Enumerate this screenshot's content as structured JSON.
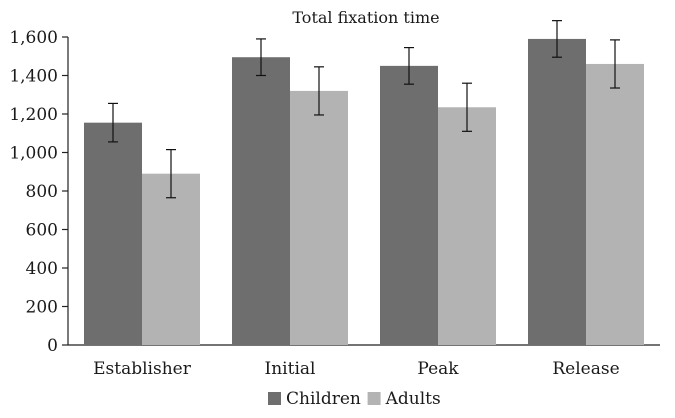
{
  "chart_data": {
    "type": "bar",
    "title": "Total fixation time",
    "xlabel": "",
    "ylabel": "",
    "categories": [
      "Establisher",
      "Initial",
      "Peak",
      "Release"
    ],
    "series": [
      {
        "name": "Children",
        "color": "#6e6e6e",
        "values": [
          1155,
          1495,
          1450,
          1590
        ],
        "error": [
          100,
          95,
          95,
          95
        ]
      },
      {
        "name": "Adults",
        "color": "#b3b3b3",
        "values": [
          890,
          1320,
          1235,
          1460
        ],
        "error": [
          125,
          125,
          125,
          125
        ]
      }
    ],
    "ylim": [
      0,
      1600
    ],
    "yticks": [
      0,
      200,
      400,
      600,
      800,
      1000,
      1200,
      1400,
      1600
    ],
    "ytick_labels": [
      "0",
      "200",
      "400",
      "600",
      "800",
      "1,000",
      "1,200",
      "1,400",
      "1,600"
    ],
    "grid": false,
    "legend_position": "bottom"
  }
}
